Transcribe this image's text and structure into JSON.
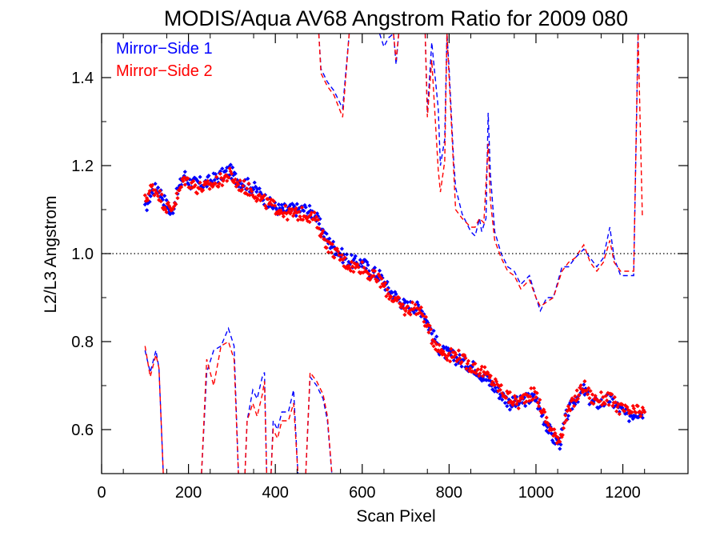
{
  "chart_data": {
    "type": "scatter",
    "title": "MODIS/Aqua AV68 Angstrom Ratio for 2009 080",
    "xlabel": "Scan Pixel",
    "ylabel": "L2/L3 Angstrom",
    "xlim": [
      0,
      1350
    ],
    "ylim": [
      0.5,
      1.5
    ],
    "x_ticks": [
      0,
      200,
      400,
      600,
      800,
      1000,
      1200
    ],
    "x_tick_labels": [
      "0",
      "200",
      "400",
      "600",
      "800",
      "1000",
      "1200"
    ],
    "y_ticks": [
      0.6,
      0.8,
      1.0,
      1.2,
      1.4
    ],
    "y_tick_labels": [
      "0.6",
      "0.8",
      "1.0",
      "1.2",
      "1.4"
    ],
    "reference_line": {
      "y": 1.0,
      "style": "dotted",
      "color": "#000000"
    },
    "legend": {
      "position": "top-left"
    },
    "series": [
      {
        "name": "Mirror−Side 1",
        "color": "#0000ff",
        "marker": "diamond",
        "points": [
          [
            100,
            1.1
          ],
          [
            115,
            1.14
          ],
          [
            130,
            1.15
          ],
          [
            145,
            1.12
          ],
          [
            160,
            1.09
          ],
          [
            175,
            1.14
          ],
          [
            190,
            1.18
          ],
          [
            205,
            1.16
          ],
          [
            220,
            1.16
          ],
          [
            240,
            1.16
          ],
          [
            260,
            1.17
          ],
          [
            280,
            1.18
          ],
          [
            295,
            1.19
          ],
          [
            310,
            1.17
          ],
          [
            330,
            1.16
          ],
          [
            350,
            1.15
          ],
          [
            370,
            1.13
          ],
          [
            390,
            1.11
          ],
          [
            410,
            1.1
          ],
          [
            430,
            1.1
          ],
          [
            450,
            1.1
          ],
          [
            470,
            1.1
          ],
          [
            490,
            1.09
          ],
          [
            505,
            1.06
          ],
          [
            520,
            1.03
          ],
          [
            540,
            1.01
          ],
          [
            560,
            0.99
          ],
          [
            580,
            0.98
          ],
          [
            600,
            0.98
          ],
          [
            620,
            0.96
          ],
          [
            640,
            0.95
          ],
          [
            660,
            0.92
          ],
          [
            680,
            0.9
          ],
          [
            700,
            0.88
          ],
          [
            720,
            0.88
          ],
          [
            740,
            0.87
          ],
          [
            760,
            0.82
          ],
          [
            780,
            0.78
          ],
          [
            800,
            0.77
          ],
          [
            820,
            0.76
          ],
          [
            840,
            0.75
          ],
          [
            860,
            0.74
          ],
          [
            880,
            0.72
          ],
          [
            900,
            0.7
          ],
          [
            920,
            0.68
          ],
          [
            940,
            0.66
          ],
          [
            960,
            0.66
          ],
          [
            980,
            0.67
          ],
          [
            1000,
            0.67
          ],
          [
            1020,
            0.62
          ],
          [
            1040,
            0.58
          ],
          [
            1055,
            0.57
          ],
          [
            1070,
            0.63
          ],
          [
            1090,
            0.67
          ],
          [
            1110,
            0.69
          ],
          [
            1130,
            0.66
          ],
          [
            1150,
            0.66
          ],
          [
            1170,
            0.67
          ],
          [
            1190,
            0.65
          ],
          [
            1210,
            0.63
          ],
          [
            1230,
            0.64
          ],
          [
            1250,
            0.64
          ]
        ],
        "dashed_upper": [
          [
            640,
            1.5
          ],
          [
            650,
            1.47
          ],
          [
            660,
            1.49
          ],
          [
            672,
            1.5
          ],
          [
            678,
            1.43
          ],
          [
            684,
            1.5
          ]
        ],
        "dashed_upper_b": [
          [
            500,
            1.5
          ],
          [
            505,
            1.42
          ],
          [
            520,
            1.39
          ],
          [
            535,
            1.37
          ],
          [
            555,
            1.33
          ],
          [
            570,
            1.5
          ]
        ],
        "dashed_upper_c": [
          [
            745,
            1.5
          ],
          [
            750,
            1.32
          ],
          [
            760,
            1.48
          ],
          [
            775,
            1.33
          ],
          [
            780,
            1.2
          ],
          [
            790,
            1.26
          ],
          [
            795,
            1.5
          ],
          [
            800,
            1.42
          ],
          [
            810,
            1.22
          ],
          [
            815,
            1.15
          ],
          [
            830,
            1.09
          ],
          [
            850,
            1.05
          ],
          [
            860,
            1.04
          ],
          [
            870,
            1.08
          ],
          [
            875,
            1.05
          ],
          [
            885,
            1.08
          ],
          [
            890,
            1.32
          ],
          [
            895,
            1.18
          ],
          [
            905,
            1.05
          ],
          [
            920,
            1.0
          ],
          [
            935,
            0.97
          ],
          [
            950,
            0.96
          ],
          [
            965,
            0.93
          ],
          [
            985,
            0.95
          ],
          [
            1000,
            0.9
          ],
          [
            1010,
            0.87
          ],
          [
            1025,
            0.9
          ],
          [
            1040,
            0.9
          ],
          [
            1060,
            0.97
          ],
          [
            1075,
            0.97
          ],
          [
            1090,
            0.99
          ],
          [
            1110,
            1.01
          ],
          [
            1125,
            0.99
          ],
          [
            1140,
            0.97
          ],
          [
            1155,
            0.99
          ],
          [
            1170,
            1.06
          ],
          [
            1180,
            0.99
          ],
          [
            1195,
            0.95
          ],
          [
            1215,
            0.95
          ],
          [
            1225,
            0.95
          ],
          [
            1235,
            1.5
          ]
        ],
        "dashed_lower": [
          [
            100,
            0.78
          ],
          [
            112,
            0.73
          ],
          [
            125,
            0.78
          ],
          [
            132,
            0.74
          ],
          [
            142,
            0.5
          ]
        ],
        "dashed_lower_b": [
          [
            230,
            0.5
          ],
          [
            242,
            0.73
          ],
          [
            258,
            0.78
          ],
          [
            275,
            0.79
          ],
          [
            292,
            0.83
          ],
          [
            305,
            0.79
          ],
          [
            315,
            0.5
          ]
        ],
        "dashed_lower_c": [
          [
            330,
            0.5
          ],
          [
            335,
            0.62
          ],
          [
            348,
            0.69
          ],
          [
            358,
            0.67
          ],
          [
            370,
            0.72
          ],
          [
            375,
            0.73
          ],
          [
            380,
            0.5
          ]
        ],
        "dashed_lower_d": [
          [
            390,
            0.5
          ],
          [
            395,
            0.62
          ],
          [
            405,
            0.6
          ],
          [
            415,
            0.64
          ],
          [
            430,
            0.64
          ],
          [
            442,
            0.69
          ],
          [
            452,
            0.5
          ]
        ],
        "dashed_lower_e": [
          [
            470,
            0.5
          ],
          [
            480,
            0.72
          ],
          [
            495,
            0.7
          ],
          [
            510,
            0.67
          ],
          [
            520,
            0.62
          ],
          [
            530,
            0.5
          ]
        ]
      },
      {
        "name": "Mirror−Side 2",
        "color": "#ff0000",
        "marker": "diamond",
        "points": [
          [
            100,
            1.12
          ],
          [
            115,
            1.15
          ],
          [
            130,
            1.14
          ],
          [
            145,
            1.11
          ],
          [
            160,
            1.1
          ],
          [
            175,
            1.13
          ],
          [
            190,
            1.17
          ],
          [
            205,
            1.16
          ],
          [
            220,
            1.15
          ],
          [
            240,
            1.15
          ],
          [
            260,
            1.16
          ],
          [
            280,
            1.17
          ],
          [
            295,
            1.18
          ],
          [
            310,
            1.16
          ],
          [
            330,
            1.15
          ],
          [
            350,
            1.14
          ],
          [
            370,
            1.12
          ],
          [
            390,
            1.11
          ],
          [
            410,
            1.1
          ],
          [
            430,
            1.09
          ],
          [
            450,
            1.09
          ],
          [
            470,
            1.09
          ],
          [
            490,
            1.08
          ],
          [
            505,
            1.05
          ],
          [
            520,
            1.02
          ],
          [
            540,
            1.0
          ],
          [
            560,
            0.98
          ],
          [
            580,
            0.97
          ],
          [
            600,
            0.97
          ],
          [
            620,
            0.95
          ],
          [
            640,
            0.94
          ],
          [
            660,
            0.91
          ],
          [
            680,
            0.89
          ],
          [
            700,
            0.87
          ],
          [
            720,
            0.88
          ],
          [
            740,
            0.86
          ],
          [
            760,
            0.81
          ],
          [
            780,
            0.78
          ],
          [
            800,
            0.77
          ],
          [
            820,
            0.77
          ],
          [
            840,
            0.75
          ],
          [
            860,
            0.74
          ],
          [
            880,
            0.73
          ],
          [
            900,
            0.71
          ],
          [
            920,
            0.69
          ],
          [
            940,
            0.67
          ],
          [
            960,
            0.66
          ],
          [
            980,
            0.68
          ],
          [
            1000,
            0.68
          ],
          [
            1020,
            0.63
          ],
          [
            1040,
            0.59
          ],
          [
            1055,
            0.58
          ],
          [
            1070,
            0.63
          ],
          [
            1090,
            0.67
          ],
          [
            1110,
            0.7
          ],
          [
            1130,
            0.67
          ],
          [
            1150,
            0.67
          ],
          [
            1170,
            0.67
          ],
          [
            1190,
            0.65
          ],
          [
            1210,
            0.64
          ],
          [
            1230,
            0.64
          ],
          [
            1250,
            0.64
          ]
        ],
        "dashed_upper": [
          [
            500,
            1.5
          ],
          [
            505,
            1.41
          ],
          [
            520,
            1.38
          ],
          [
            535,
            1.36
          ],
          [
            555,
            1.31
          ],
          [
            570,
            1.5
          ]
        ],
        "dashed_upper_b": [
          [
            672,
            1.5
          ],
          [
            678,
            1.44
          ],
          [
            684,
            1.5
          ]
        ],
        "dashed_upper_c": [
          [
            745,
            1.5
          ],
          [
            750,
            1.31
          ],
          [
            760,
            1.44
          ],
          [
            775,
            1.19
          ],
          [
            780,
            1.14
          ],
          [
            790,
            1.21
          ],
          [
            795,
            1.5
          ],
          [
            800,
            1.4
          ],
          [
            810,
            1.2
          ],
          [
            815,
            1.1
          ],
          [
            830,
            1.08
          ],
          [
            850,
            1.06
          ],
          [
            860,
            1.06
          ],
          [
            870,
            1.08
          ],
          [
            880,
            1.07
          ],
          [
            890,
            1.25
          ],
          [
            895,
            1.12
          ],
          [
            905,
            1.03
          ],
          [
            920,
            0.99
          ],
          [
            935,
            0.96
          ],
          [
            950,
            0.95
          ],
          [
            965,
            0.92
          ],
          [
            985,
            0.94
          ],
          [
            1000,
            0.9
          ],
          [
            1010,
            0.88
          ],
          [
            1025,
            0.89
          ],
          [
            1040,
            0.9
          ],
          [
            1060,
            0.96
          ],
          [
            1075,
            0.98
          ],
          [
            1090,
            0.99
          ],
          [
            1110,
            1.02
          ],
          [
            1125,
            0.98
          ],
          [
            1140,
            0.96
          ],
          [
            1155,
            0.98
          ],
          [
            1170,
            1.03
          ],
          [
            1180,
            0.98
          ],
          [
            1195,
            0.96
          ],
          [
            1215,
            0.96
          ],
          [
            1225,
            0.96
          ],
          [
            1235,
            1.5
          ],
          [
            1245,
            1.08
          ]
        ],
        "dashed_lower": [
          [
            100,
            0.79
          ],
          [
            112,
            0.72
          ],
          [
            125,
            0.77
          ],
          [
            132,
            0.74
          ],
          [
            142,
            0.5
          ]
        ],
        "dashed_lower_b": [
          [
            230,
            0.5
          ],
          [
            242,
            0.76
          ],
          [
            258,
            0.7
          ],
          [
            275,
            0.79
          ],
          [
            292,
            0.8
          ],
          [
            305,
            0.76
          ],
          [
            315,
            0.5
          ]
        ],
        "dashed_lower_c": [
          [
            330,
            0.5
          ],
          [
            335,
            0.62
          ],
          [
            348,
            0.66
          ],
          [
            358,
            0.63
          ],
          [
            370,
            0.68
          ],
          [
            375,
            0.71
          ],
          [
            380,
            0.5
          ]
        ],
        "dashed_lower_d": [
          [
            390,
            0.5
          ],
          [
            395,
            0.6
          ],
          [
            405,
            0.58
          ],
          [
            415,
            0.62
          ],
          [
            430,
            0.62
          ],
          [
            442,
            0.66
          ],
          [
            452,
            0.5
          ]
        ],
        "dashed_lower_e": [
          [
            470,
            0.5
          ],
          [
            480,
            0.73
          ],
          [
            495,
            0.71
          ],
          [
            510,
            0.68
          ],
          [
            520,
            0.63
          ],
          [
            530,
            0.5
          ]
        ]
      }
    ]
  }
}
